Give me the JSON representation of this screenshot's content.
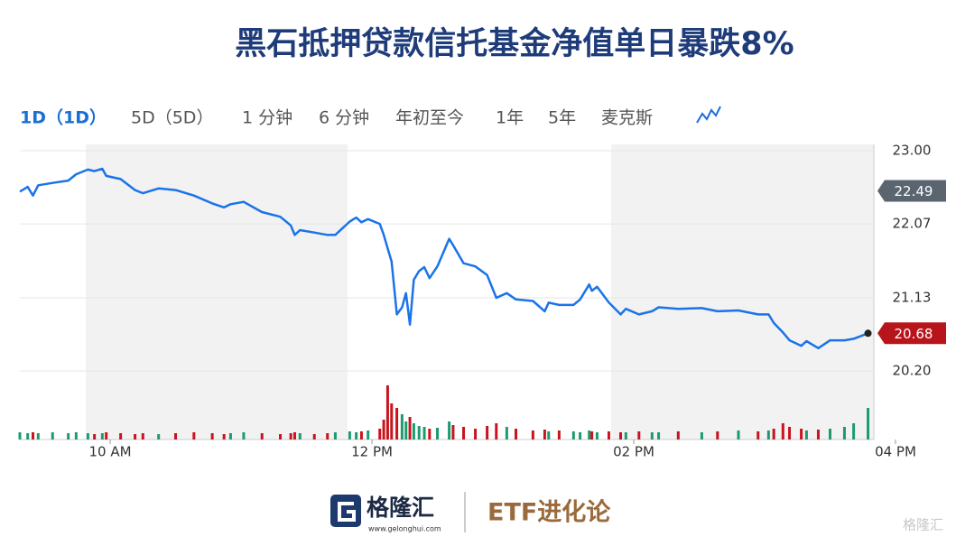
{
  "tabs": [
    "1D（1D）",
    "5D（5D）",
    "1 分钟",
    "6 分钟",
    "年初至今",
    "1年",
    "5年",
    "麦克斯"
  ],
  "footer": {
    "brand": "格隆汇",
    "url": "www.gelonghui.com",
    "column": "ETF进化论",
    "watermark": "格隆汇"
  },
  "chart_data": {
    "type": "line",
    "title": "黑石抵押贷款信托基金净值单日暴跌8%",
    "x": [
      9.31,
      9.37,
      9.41,
      9.45,
      9.56,
      9.68,
      9.74,
      9.83,
      9.88,
      9.94,
      9.97,
      10.08,
      10.19,
      10.25,
      10.37,
      10.5,
      10.64,
      10.78,
      10.87,
      10.92,
      11.02,
      11.16,
      11.3,
      11.38,
      11.41,
      11.45,
      11.56,
      11.66,
      11.72,
      11.83,
      11.88,
      11.92,
      11.97,
      12.06,
      12.09,
      12.12,
      12.15,
      12.19,
      12.23,
      12.26,
      12.29,
      12.32,
      12.36,
      12.4,
      12.44,
      12.5,
      12.59,
      12.62,
      12.7,
      12.79,
      12.88,
      12.95,
      13.03,
      13.1,
      13.23,
      13.32,
      13.35,
      13.43,
      13.54,
      13.59,
      13.66,
      13.68,
      13.72,
      13.81,
      13.9,
      13.94,
      14.04,
      14.14,
      14.19,
      14.34,
      14.52,
      14.64,
      14.8,
      14.95,
      15.03,
      15.07,
      15.14,
      15.19,
      15.28,
      15.32,
      15.41,
      15.5,
      15.61,
      15.68,
      15.79
    ],
    "values": [
      22.48,
      22.54,
      22.43,
      22.56,
      22.59,
      22.62,
      22.7,
      22.76,
      22.74,
      22.77,
      22.68,
      22.64,
      22.5,
      22.46,
      22.52,
      22.5,
      22.43,
      22.33,
      22.28,
      22.32,
      22.35,
      22.22,
      22.16,
      22.05,
      21.93,
      21.99,
      21.96,
      21.93,
      21.93,
      22.1,
      22.15,
      22.09,
      22.13,
      22.07,
      21.93,
      21.76,
      21.59,
      20.92,
      21.01,
      21.19,
      20.79,
      21.36,
      21.47,
      21.52,
      21.38,
      21.53,
      21.88,
      21.8,
      21.57,
      21.53,
      21.42,
      21.13,
      21.19,
      21.11,
      21.09,
      20.96,
      21.07,
      21.04,
      21.04,
      21.11,
      21.3,
      21.22,
      21.27,
      21.07,
      20.92,
      20.99,
      20.92,
      20.96,
      21.01,
      20.99,
      21.0,
      20.96,
      20.97,
      20.92,
      20.92,
      20.81,
      20.69,
      20.59,
      20.52,
      20.58,
      20.49,
      20.59,
      20.59,
      20.61,
      20.68
    ],
    "volume": [
      8,
      7,
      8,
      7,
      8,
      7,
      8,
      7,
      6,
      7,
      8,
      7,
      6,
      7,
      6,
      7,
      8,
      7,
      6,
      7,
      8,
      7,
      6,
      7,
      8,
      7,
      6,
      7,
      8,
      9,
      8,
      9,
      10,
      12,
      22,
      60,
      40,
      35,
      28,
      20,
      25,
      18,
      15,
      14,
      12,
      13,
      20,
      16,
      14,
      12,
      15,
      18,
      14,
      12,
      10,
      11,
      9,
      10,
      9,
      8,
      10,
      9,
      8,
      9,
      8,
      8,
      9,
      8,
      8,
      9,
      8,
      9,
      10,
      9,
      10,
      12,
      18,
      14,
      12,
      10,
      11,
      12,
      14,
      18,
      35
    ],
    "vlim": [
      0,
      60
    ],
    "color": "#1a73e8",
    "up_color": "#1e9b6e",
    "down_color": "#c8141e",
    "prev_close": 22.49,
    "prev_close_color": "#5a6570",
    "last_color": "#b8141c",
    "xlim": [
      9.31,
      16.0
    ],
    "xticks": [
      {
        "value": 10,
        "label": "10 AM"
      },
      {
        "value": 12,
        "label": "12 PM"
      },
      {
        "value": 14,
        "label": "02 PM"
      },
      {
        "value": 16,
        "label": "04 PM"
      }
    ],
    "ylim": [
      19.33,
      23.08
    ],
    "yticks": [
      {
        "value": 23,
        "label": "23.00"
      },
      22.07,
      21.13,
      {
        "value": 20.2,
        "label": "20.20"
      }
    ],
    "grid": true
  }
}
